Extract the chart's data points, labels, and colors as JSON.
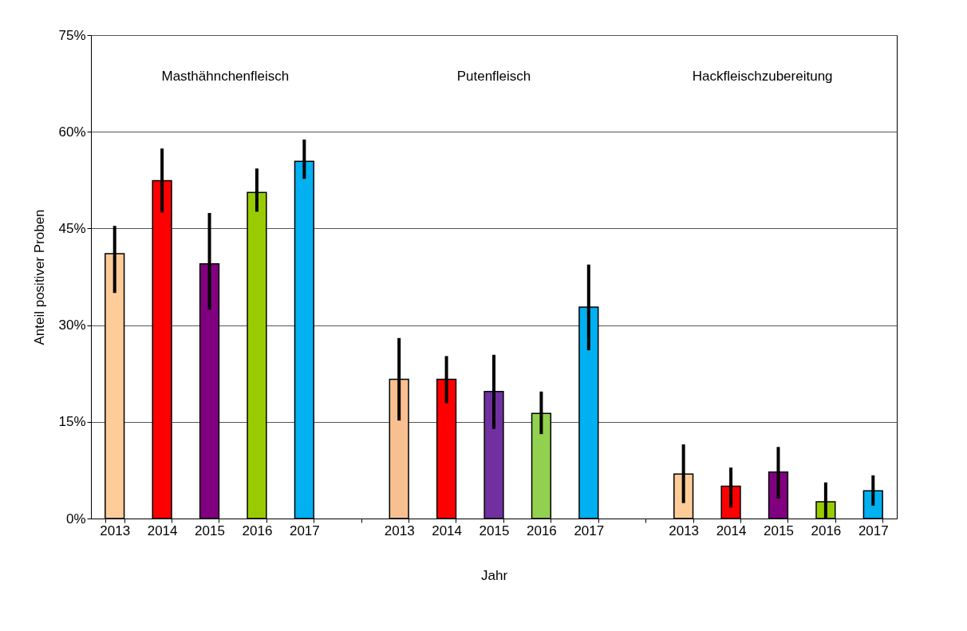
{
  "chart_data": {
    "type": "bar",
    "xlabel": "Jahr",
    "ylabel": "Anteil positiver Proben",
    "categories": [
      "2013",
      "2014",
      "2015",
      "2016",
      "2017",
      null,
      "2013",
      "2014",
      "2015",
      "2016",
      "2017",
      null,
      "2013",
      "2014",
      "2015",
      "2016",
      "2017"
    ],
    "values": [
      41.1,
      52.4,
      39.5,
      50.6,
      55.4,
      null,
      21.6,
      21.6,
      19.7,
      16.3,
      32.8,
      null,
      6.9,
      5.0,
      7.2,
      2.6,
      4.3
    ],
    "errors": [
      [
        35.0,
        45.4
      ],
      [
        47.5,
        57.4
      ],
      [
        32.4,
        47.4
      ],
      [
        47.6,
        54.3
      ],
      [
        52.7,
        58.8
      ],
      null,
      [
        15.2,
        28.0
      ],
      [
        17.9,
        25.2
      ],
      [
        13.9,
        25.4
      ],
      [
        13.1,
        19.7
      ],
      [
        26.1,
        39.4
      ],
      null,
      [
        2.4,
        11.5
      ],
      [
        1.7,
        7.9
      ],
      [
        3.1,
        11.1
      ],
      [
        0,
        5.6
      ],
      [
        2.0,
        6.7
      ]
    ],
    "colors": [
      "#fdcc99",
      "#ff0000",
      "#800080",
      "#99cc00",
      "#00b0f0",
      null,
      "#f8c090",
      "#ff0000",
      "#7030a0",
      "#92d050",
      "#00b0f0",
      null,
      "#fdcc99",
      "#ff0000",
      "#800080",
      "#99cc00",
      "#00b0f0"
    ],
    "ylim": [
      0,
      75
    ],
    "yticks": [
      {
        "value": 0,
        "label": "0%"
      },
      {
        "value": 15,
        "label": "15%"
      },
      {
        "value": 30,
        "label": "30%"
      },
      {
        "value": 45,
        "label": "45%"
      },
      {
        "value": 60,
        "label": "60%"
      },
      {
        "value": 75,
        "label": "75%"
      }
    ],
    "grid": "y",
    "annotations": [
      "Masthähnchenfleisch",
      "Putenfleisch",
      "Hackfleischzubereitung"
    ]
  }
}
